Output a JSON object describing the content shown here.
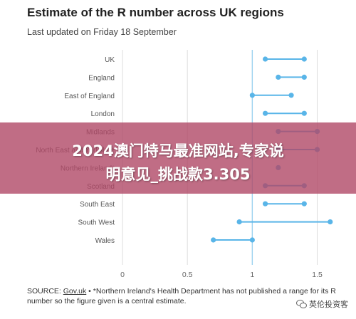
{
  "title": "Estimate of the R number across UK regions",
  "subtitle": "Last updated on Friday 18 September",
  "chart_data": {
    "type": "dumbbell",
    "categories": [
      "UK",
      "England",
      "East of England",
      "London",
      "Midlands",
      "North East and Yorkshire",
      "Northern Ireland*",
      "Scotland",
      "South East",
      "South West",
      "Wales"
    ],
    "ranges": [
      [
        1.1,
        1.4
      ],
      [
        1.2,
        1.4
      ],
      [
        1.0,
        1.3
      ],
      [
        1.1,
        1.4
      ],
      [
        1.2,
        1.5
      ],
      [
        1.2,
        1.5
      ],
      [
        1.2,
        1.2
      ],
      [
        1.1,
        1.4
      ],
      [
        1.1,
        1.4
      ],
      [
        0.9,
        1.6
      ],
      [
        0.7,
        1.0
      ]
    ],
    "x_ticks": [
      "0",
      "0.5",
      "1",
      "1.5"
    ],
    "xlim": [
      0,
      1.7
    ],
    "reference_line": 1,
    "colors": {
      "range": "#59b5e8",
      "reference": "#9fd3f0",
      "grid": "#dcdcdc"
    }
  },
  "overlay": {
    "line1": "2024澳门特马最准网站,专家说",
    "line2": "明意见_挑战款3.305",
    "color": "#b04866"
  },
  "source": {
    "label": "SOURCE:",
    "link": "Gov.uk",
    "note": "• *Northern Ireland's Health Department has not published a range for its R number so the figure given is a central estimate."
  },
  "watermark": {
    "text": "英伦投资客"
  }
}
